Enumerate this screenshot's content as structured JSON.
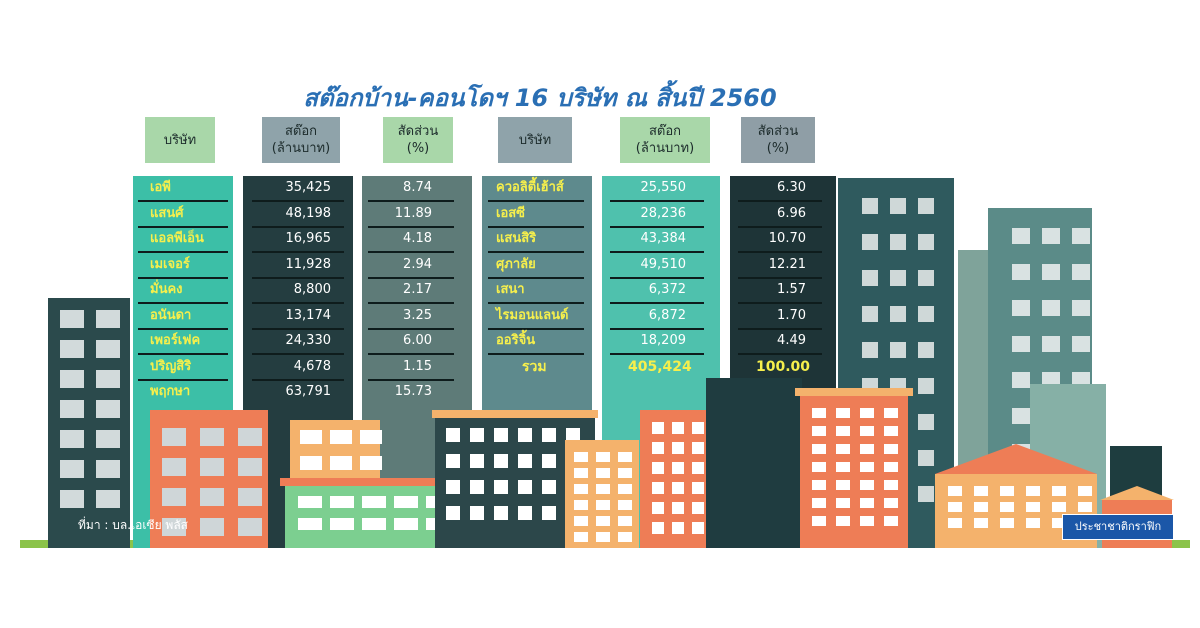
{
  "chart_data": {
    "type": "table",
    "title": "สต๊อกบ้าน-คอนโดฯ 16 บริษัท ณ สิ้นปี 2560",
    "headers": [
      "บริษัท",
      "สต๊อก\n(ล้านบาท)",
      "สัดส่วน\n(%)",
      "บริษัท",
      "สต๊อก\n(ล้านบาท)",
      "สัดส่วน\n(%)"
    ],
    "left_rows": [
      {
        "company": "เอพี",
        "stock": "35,425",
        "share": "8.74"
      },
      {
        "company": "แสนศ์",
        "stock": "48,198",
        "share": "11.89"
      },
      {
        "company": "แอลพีเอ็น",
        "stock": "16,965",
        "share": "4.18"
      },
      {
        "company": "เมเจอร์",
        "stock": "11,928",
        "share": "2.94"
      },
      {
        "company": "มั่นคง",
        "stock": "8,800",
        "share": "2.17"
      },
      {
        "company": "อนันดา",
        "stock": "13,174",
        "share": "3.25"
      },
      {
        "company": "เพอร์เฟค",
        "stock": "24,330",
        "share": "6.00"
      },
      {
        "company": "ปริญสิริ",
        "stock": "4,678",
        "share": "1.15"
      },
      {
        "company": "พฤกษา",
        "stock": "63,791",
        "share": "15.73"
      }
    ],
    "right_rows": [
      {
        "company": "ควอลิตี้เฮ้าส์",
        "stock": "25,550",
        "share": "6.30"
      },
      {
        "company": "เอสซี",
        "stock": "28,236",
        "share": "6.96"
      },
      {
        "company": "แสนสิริ",
        "stock": "43,384",
        "share": "10.70"
      },
      {
        "company": "ศุภาลัย",
        "stock": "49,510",
        "share": "12.21"
      },
      {
        "company": "เสนา",
        "stock": "6,372",
        "share": "1.57"
      },
      {
        "company": "ไรมอนแลนด์",
        "stock": "6,872",
        "share": "1.70"
      },
      {
        "company": "ออริจิ้น",
        "stock": "18,209",
        "share": "4.49"
      }
    ],
    "total": {
      "label": "รวม",
      "stock": "405,424",
      "share": "100.00"
    }
  },
  "source": "ที่มา : บล.เอเซีย พลัส",
  "credit": "ประชาชาติกราฟิก",
  "colors": {
    "title": "#2a6fb4",
    "accent_text": "#f6ef4c",
    "teal": "#3cbfa7",
    "dark_slate": "#2a4a4f",
    "grey_green": "#5e7b78",
    "header_green": "#a9d7a9",
    "header_grey": "#8f9ea6",
    "orange": "#ee7d56",
    "ground": "#8bc34a"
  }
}
